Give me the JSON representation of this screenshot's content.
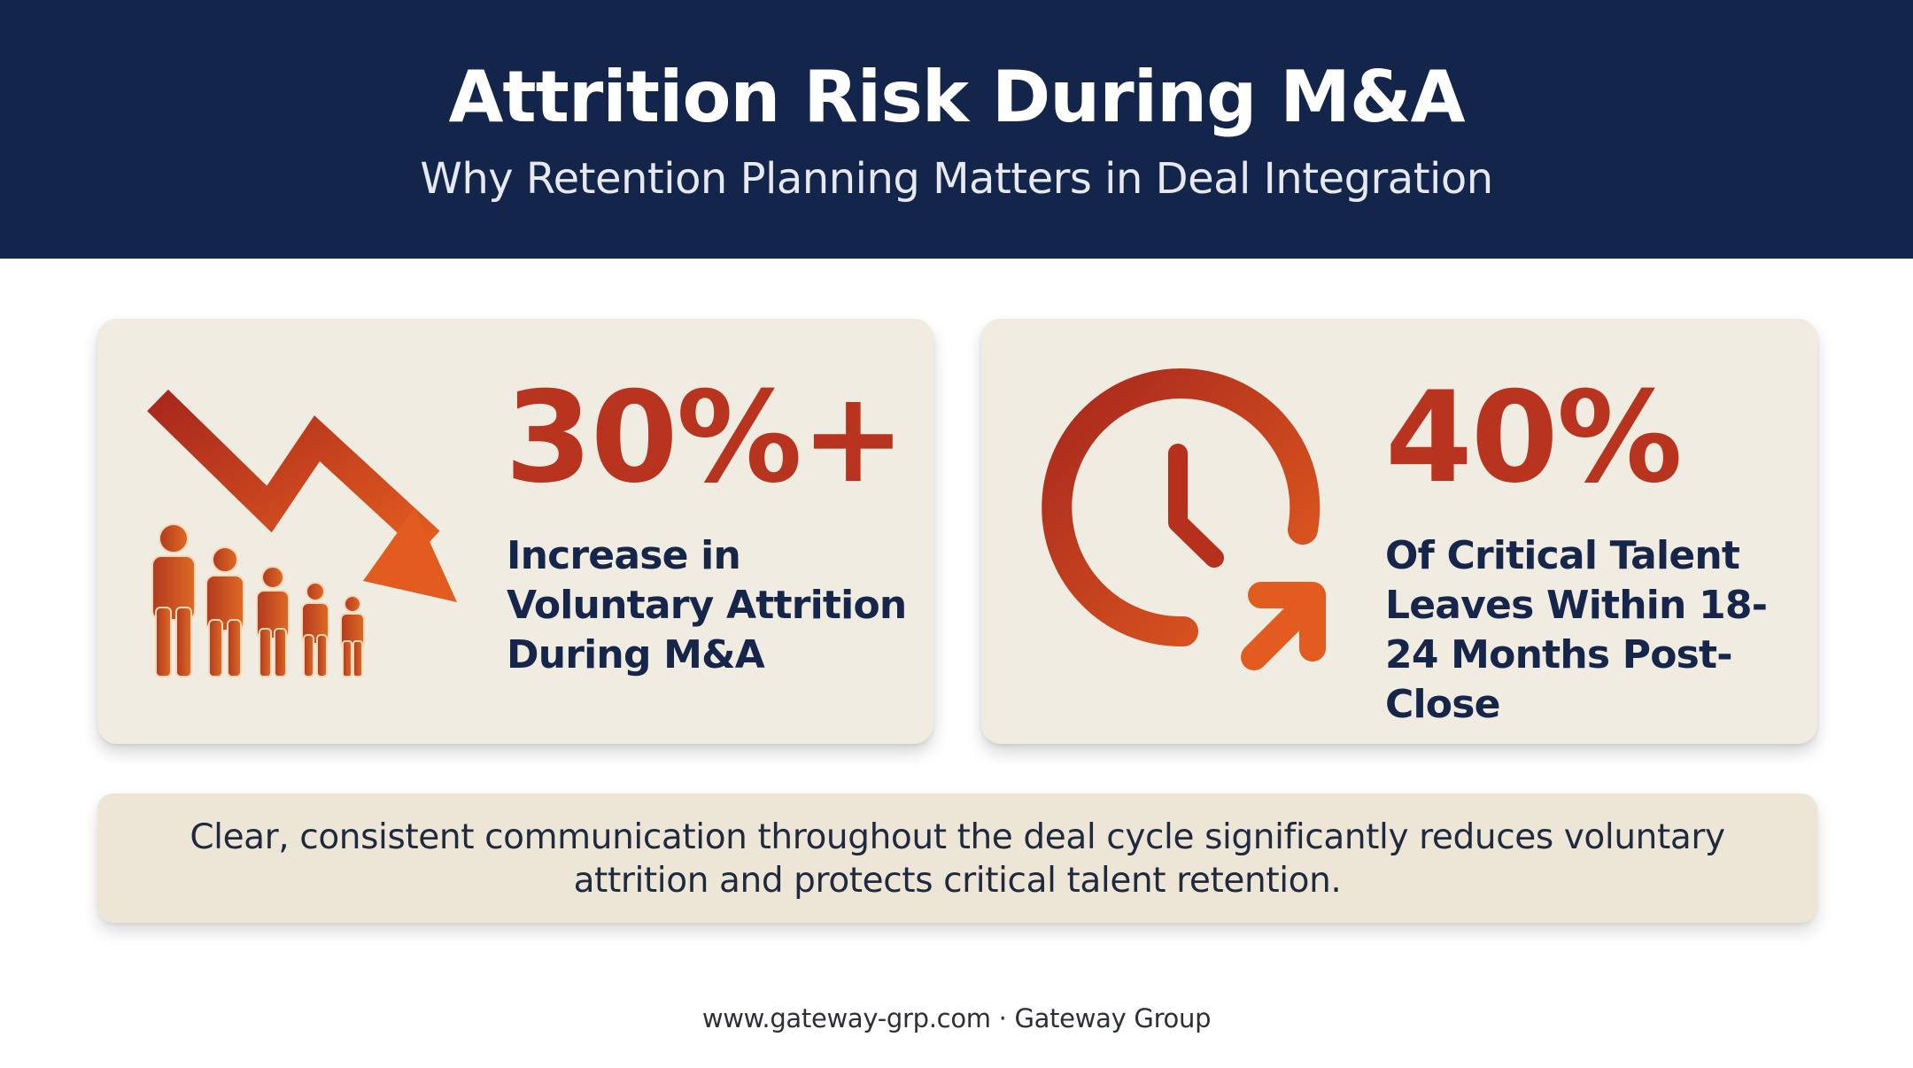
{
  "header": {
    "title": "Attrition Risk During M&A",
    "subtitle": "Why Retention Planning Matters in Deal Integration"
  },
  "stats": [
    {
      "value": "30%+",
      "description": "Increase in Voluntary Attrition During M&A",
      "icon": "declining-arrow-people-icon"
    },
    {
      "value": "40%",
      "description": "Of Critical Talent Leaves Within 18-24 Months Post-Close",
      "icon": "clock-exit-arrow-icon"
    }
  ],
  "note": {
    "text": "Clear, consistent communication throughout the deal cycle significantly reduces voluntary attrition and protects critical talent retention."
  },
  "footer": {
    "text": "www.gateway-grp.com · Gateway Group"
  },
  "colors": {
    "header_bg": "#13254a",
    "accent": "#b9341e",
    "accent_light": "#e35d20",
    "card_bg": "#f1ece2",
    "note_bg": "#ede6d6",
    "text_dark": "#16264a"
  }
}
